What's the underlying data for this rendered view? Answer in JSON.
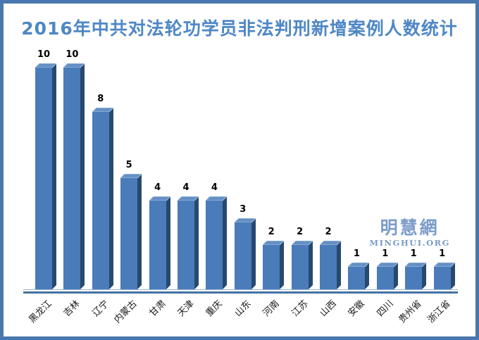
{
  "title": "2016年中共对法轮功学员非法判刑新增案例人数统计",
  "watermark": {
    "cjk": "明慧網",
    "latin": "MINGHUI.ORG"
  },
  "colors": {
    "frame_border": "#4a77ad",
    "title": "#4e87c5",
    "bar_face": "#4a7cba",
    "bar_side": "#27496e",
    "bar_top": "#6490c5",
    "bar_top_edge": "#a9c0de",
    "axis_light": "#9bb6d8",
    "axis_dark": "#4470a2",
    "value_label": "#000000",
    "category_label": "#1a1a1a",
    "watermark": "#7b9cc9"
  },
  "chart_data": {
    "type": "bar",
    "style": "3d-column",
    "title": "2016年中共对法轮功学员非法判刑新增案例人数统计",
    "categories": [
      "黑龙江",
      "吉林",
      "辽宁",
      "内蒙古",
      "甘肃",
      "天津",
      "重庆",
      "山东",
      "河南",
      "江苏",
      "山西",
      "安徽",
      "四川",
      "贵州省",
      "浙江省"
    ],
    "values": [
      10,
      10,
      8,
      5,
      4,
      4,
      4,
      3,
      2,
      2,
      2,
      1,
      1,
      1,
      1
    ],
    "xlabel": "",
    "ylabel": "",
    "ylim": [
      0,
      10
    ],
    "grid": false,
    "legend": null,
    "data_labels": true,
    "x_tick_rotation": -45
  }
}
